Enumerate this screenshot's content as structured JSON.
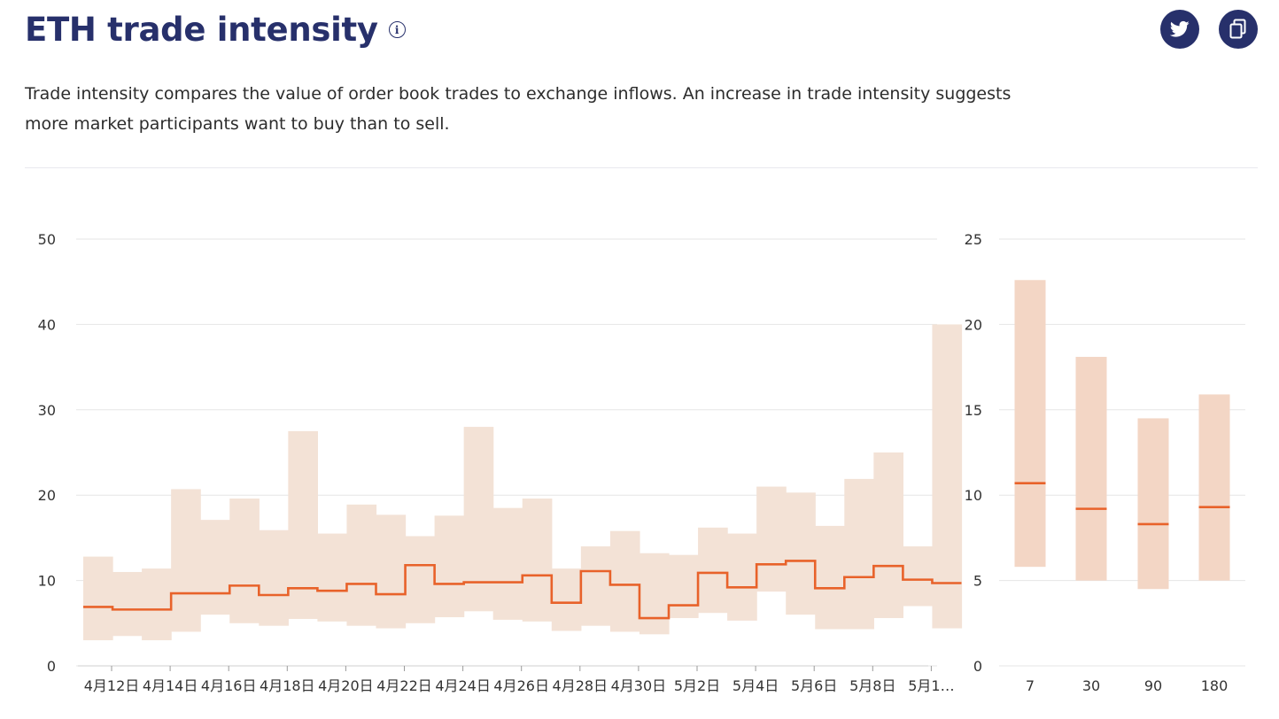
{
  "header": {
    "title": "ETH trade intensity",
    "info_icon": "info-icon",
    "twitter_icon": "twitter-icon",
    "copy_icon": "copy-icon"
  },
  "description": "Trade intensity compares the value of order book trades to exchange inflows. An increase in trade intensity suggests more market participants want to buy than to sell.",
  "colors": {
    "band": "#f3e2d6",
    "band_side": "#f3d6c5",
    "line": "#e8622a",
    "grid": "#e6e6e6",
    "title": "#27306b"
  },
  "chart_data": [
    {
      "type": "line",
      "title": "",
      "xlabel": "",
      "ylabel": "",
      "ylim": [
        0,
        50
      ],
      "yticks": [
        0,
        10,
        20,
        30,
        40,
        50
      ],
      "grid": true,
      "step": true,
      "x_tick_labels": [
        "4月12日",
        "4月14日",
        "4月16日",
        "4月18日",
        "4月20日",
        "4月22日",
        "4月24日",
        "4月26日",
        "4月28日",
        "4月30日",
        "5月2日",
        "5月4日",
        "5月6日",
        "5月8日",
        "5月1…"
      ],
      "series": [
        {
          "kind": "band",
          "low": [
            3,
            3.5,
            3,
            4,
            6,
            5,
            4.7,
            5.5,
            5.2,
            4.7,
            4.4,
            5,
            5.7,
            6.4,
            5.4,
            5.2,
            4.1,
            4.7,
            4,
            3.7,
            5.6,
            6.2,
            5.3,
            8.7,
            6,
            4.3,
            4.3,
            5.6,
            7,
            4.4
          ],
          "high": [
            12.8,
            11,
            11.4,
            20.7,
            17.1,
            19.6,
            15.9,
            27.5,
            15.5,
            18.9,
            17.7,
            15.2,
            17.6,
            28,
            18.5,
            19.6,
            11.4,
            14,
            15.8,
            13.2,
            13,
            16.2,
            15.5,
            21,
            20.3,
            16.4,
            21.9,
            25,
            14,
            40
          ]
        },
        {
          "kind": "line",
          "values": [
            6.9,
            6.6,
            6.6,
            8.5,
            8.5,
            9.4,
            8.3,
            9.1,
            8.8,
            9.6,
            8.4,
            11.8,
            9.6,
            9.8,
            9.8,
            10.6,
            7.4,
            11.1,
            9.5,
            5.6,
            7.1,
            10.9,
            9.2,
            11.9,
            12.3,
            9.1,
            10.4,
            11.7,
            10.1,
            9.7
          ]
        }
      ]
    },
    {
      "type": "bar",
      "title": "",
      "xlabel": "",
      "ylabel": "",
      "ylim": [
        0,
        25
      ],
      "yticks": [
        0,
        5,
        10,
        15,
        20,
        25
      ],
      "grid": true,
      "categories": [
        "7",
        "30",
        "90",
        "180"
      ],
      "low": [
        5.8,
        5,
        4.5,
        5
      ],
      "high": [
        22.6,
        18.1,
        14.5,
        15.9
      ],
      "median": [
        10.7,
        9.2,
        8.3,
        9.3
      ]
    }
  ]
}
